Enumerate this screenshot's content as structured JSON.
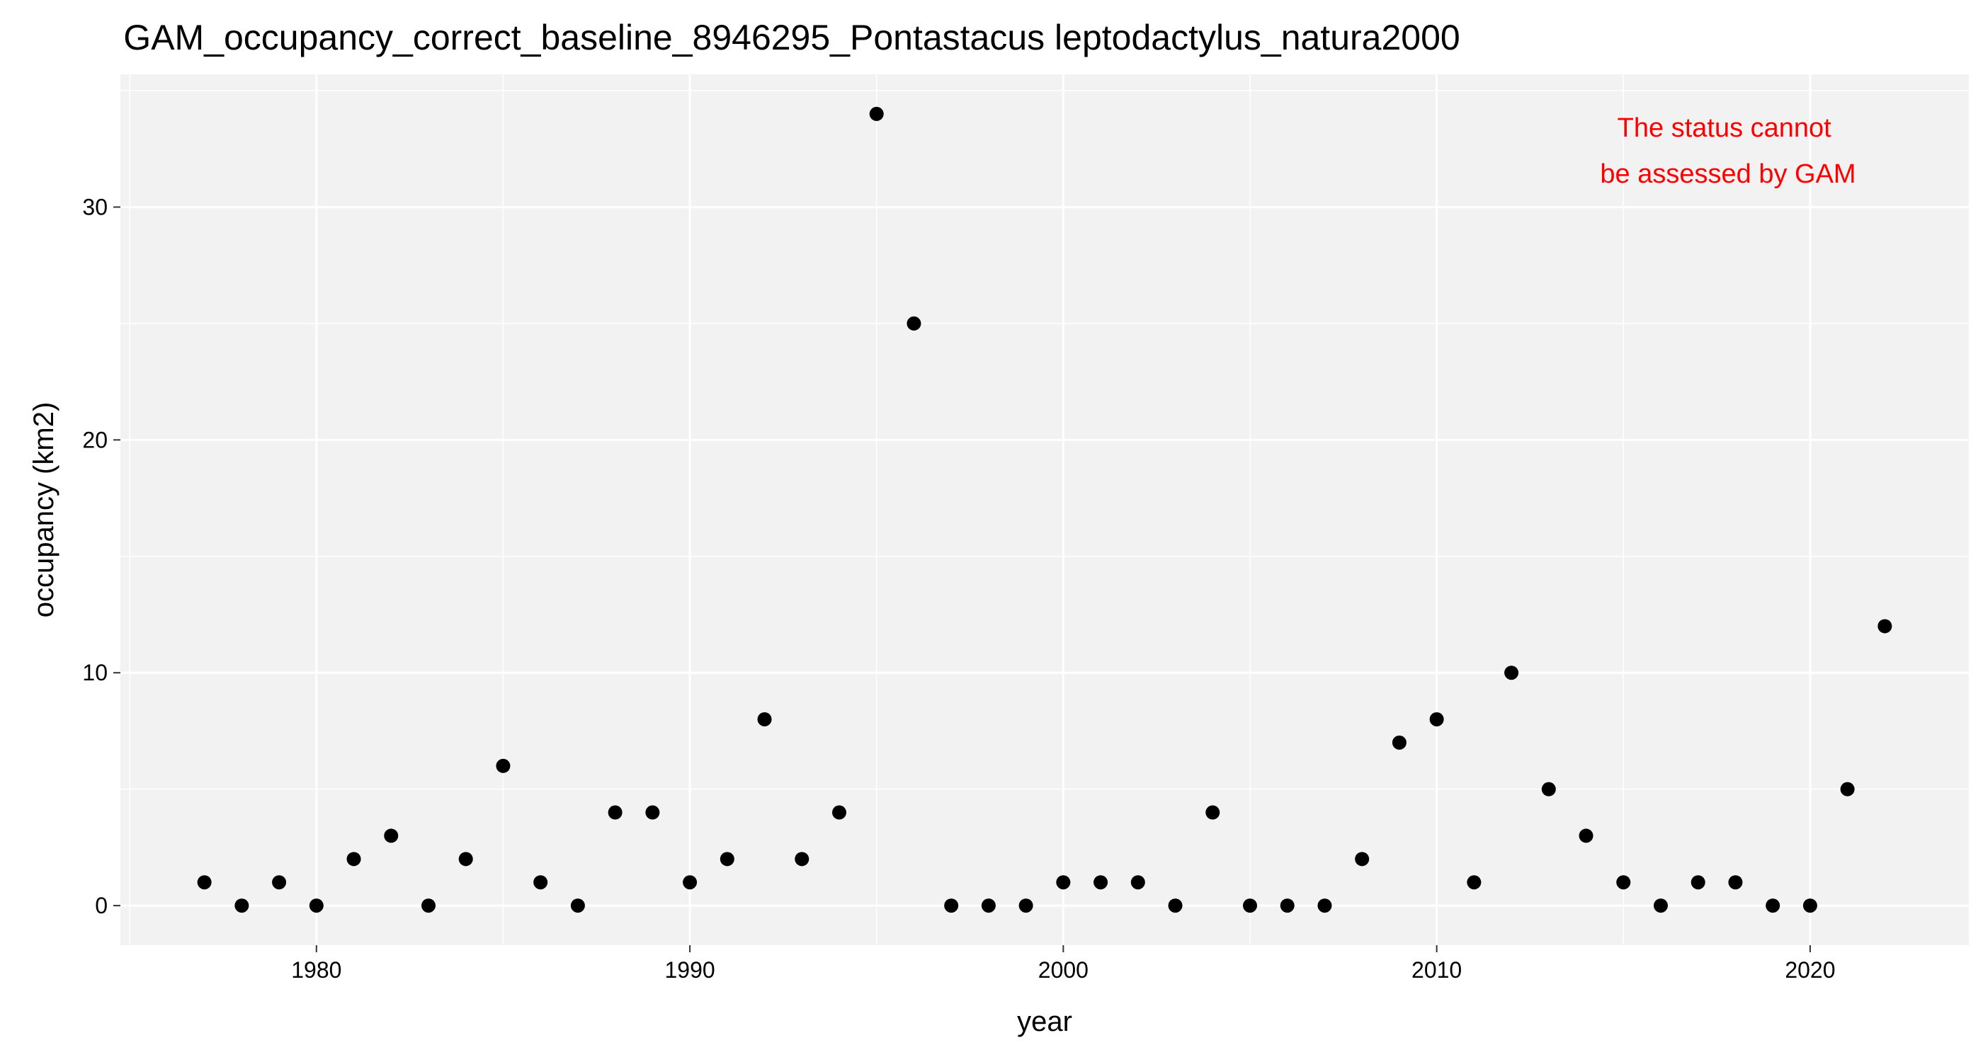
{
  "chart_data": {
    "type": "scatter",
    "title": "GAM_occupancy_correct_baseline_8946295_Pontastacus leptodactylus_natura2000",
    "xlabel": "year",
    "ylabel": "occupancy (km2)",
    "xlim": [
      1974.75,
      2024.25
    ],
    "ylim": [
      -1.7,
      35.7
    ],
    "x_ticks": [
      1980,
      1990,
      2000,
      2010,
      2020
    ],
    "y_ticks": [
      0,
      10,
      20,
      30
    ],
    "grid": true,
    "legend": "none",
    "annotation": {
      "lines": [
        "The status cannot",
        "be assessed by GAM"
      ],
      "color": "#ff0000",
      "position": "top-right"
    },
    "colors": {
      "panel": "#f2f2f2",
      "grid": "#ffffff",
      "point": "#000000"
    },
    "x": [
      1977,
      1978,
      1979,
      1980,
      1981,
      1982,
      1983,
      1984,
      1985,
      1986,
      1987,
      1988,
      1989,
      1990,
      1991,
      1992,
      1993,
      1994,
      1995,
      1996,
      1997,
      1998,
      1999,
      2000,
      2001,
      2002,
      2003,
      2004,
      2005,
      2006,
      2007,
      2008,
      2009,
      2010,
      2011,
      2012,
      2013,
      2014,
      2015,
      2016,
      2017,
      2018,
      2019,
      2020,
      2021,
      2022
    ],
    "y": [
      1,
      0,
      1,
      0,
      2,
      3,
      0,
      2,
      6,
      1,
      0,
      4,
      4,
      1,
      2,
      8,
      2,
      4,
      34,
      25,
      0,
      0,
      0,
      1,
      1,
      1,
      0,
      4,
      0,
      0,
      0,
      2,
      7,
      8,
      1,
      10,
      5,
      3,
      1,
      0,
      1,
      1,
      0,
      0,
      5,
      12
    ]
  }
}
